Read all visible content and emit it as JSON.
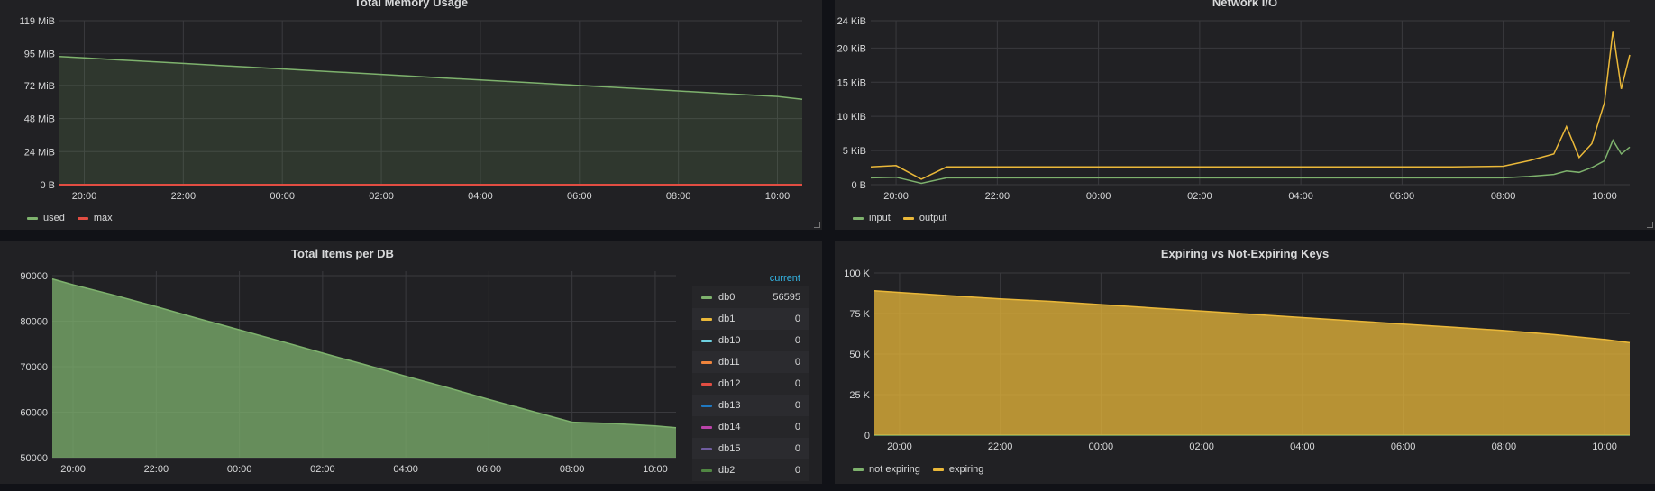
{
  "panels": {
    "memory": {
      "title": "Total Memory Usage",
      "legend": [
        {
          "label": "used",
          "color": "#7eb26d"
        },
        {
          "label": "max",
          "color": "#e24d42"
        }
      ]
    },
    "network": {
      "title": "Network I/O",
      "legend": [
        {
          "label": "input",
          "color": "#7eb26d"
        },
        {
          "label": "output",
          "color": "#eab839"
        }
      ]
    },
    "items": {
      "title": "Total Items per DB",
      "legend_header": "current",
      "legend": [
        {
          "label": "db0",
          "value": "56595",
          "color": "#7eb26d"
        },
        {
          "label": "db1",
          "value": "0",
          "color": "#eab839"
        },
        {
          "label": "db10",
          "value": "0",
          "color": "#6ed0e0"
        },
        {
          "label": "db11",
          "value": "0",
          "color": "#ef843c"
        },
        {
          "label": "db12",
          "value": "0",
          "color": "#e24d42"
        },
        {
          "label": "db13",
          "value": "0",
          "color": "#1f78c1"
        },
        {
          "label": "db14",
          "value": "0",
          "color": "#ba43a9"
        },
        {
          "label": "db15",
          "value": "0",
          "color": "#705da0"
        },
        {
          "label": "db2",
          "value": "0",
          "color": "#508642"
        }
      ]
    },
    "expiring": {
      "title": "Expiring vs Not-Expiring Keys",
      "legend": [
        {
          "label": "not expiring",
          "color": "#7eb26d"
        },
        {
          "label": "expiring",
          "color": "#eab839"
        }
      ]
    }
  },
  "chart_data": [
    {
      "id": "memory",
      "type": "area",
      "title": "Total Memory Usage",
      "x": [
        "19:30",
        "20:00",
        "21:00",
        "22:00",
        "23:00",
        "00:00",
        "01:00",
        "02:00",
        "03:00",
        "04:00",
        "05:00",
        "06:00",
        "07:00",
        "08:00",
        "09:00",
        "10:00",
        "10:30"
      ],
      "x_ticks": [
        "20:00",
        "22:00",
        "00:00",
        "02:00",
        "04:00",
        "06:00",
        "08:00",
        "10:00"
      ],
      "y_ticks": [
        "0 B",
        "24 MiB",
        "48 MiB",
        "72 MiB",
        "95 MiB",
        "119 MiB"
      ],
      "ylim_mib": [
        0,
        119
      ],
      "series": [
        {
          "name": "used",
          "color": "#7eb26d",
          "fill": true,
          "values_mib": [
            93,
            92,
            90,
            88,
            86,
            84,
            82,
            80,
            78,
            76,
            74,
            72,
            70,
            68,
            66,
            64,
            62
          ]
        },
        {
          "name": "max",
          "color": "#e24d42",
          "fill": false,
          "values_mib": [
            0,
            0,
            0,
            0,
            0,
            0,
            0,
            0,
            0,
            0,
            0,
            0,
            0,
            0,
            0,
            0,
            0
          ]
        }
      ],
      "grid": true,
      "legend_position": "bottom-left"
    },
    {
      "id": "network",
      "type": "line",
      "title": "Network I/O",
      "x": [
        "19:30",
        "20:00",
        "20:30",
        "21:00",
        "22:00",
        "23:00",
        "00:00",
        "01:00",
        "02:00",
        "03:00",
        "04:00",
        "05:00",
        "06:00",
        "07:00",
        "08:00",
        "08:30",
        "09:00",
        "09:15",
        "09:30",
        "09:45",
        "10:00",
        "10:10",
        "10:20",
        "10:30"
      ],
      "x_ticks": [
        "20:00",
        "22:00",
        "00:00",
        "02:00",
        "04:00",
        "06:00",
        "08:00",
        "10:00"
      ],
      "y_ticks": [
        "0 B",
        "5 KiB",
        "10 KiB",
        "15 KiB",
        "20 KiB",
        "24 KiB"
      ],
      "ylim_kib": [
        0,
        24
      ],
      "series": [
        {
          "name": "input",
          "color": "#7eb26d",
          "values_kib": [
            1.0,
            1.1,
            0.2,
            1.0,
            1.0,
            1.0,
            1.0,
            1.0,
            1.0,
            1.0,
            1.0,
            1.0,
            1.0,
            1.0,
            1.0,
            1.2,
            1.5,
            2.0,
            1.8,
            2.5,
            3.5,
            6.5,
            4.5,
            5.5
          ]
        },
        {
          "name": "output",
          "color": "#eab839",
          "values_kib": [
            2.6,
            2.8,
            0.8,
            2.6,
            2.6,
            2.6,
            2.6,
            2.6,
            2.6,
            2.6,
            2.6,
            2.6,
            2.6,
            2.6,
            2.7,
            3.5,
            4.5,
            8.5,
            4.0,
            6.0,
            12.0,
            22.5,
            14.0,
            19.0
          ]
        }
      ],
      "grid": true,
      "legend_position": "bottom-left"
    },
    {
      "id": "items",
      "type": "area",
      "title": "Total Items per DB",
      "x": [
        "19:30",
        "20:00",
        "21:00",
        "22:00",
        "23:00",
        "00:00",
        "01:00",
        "02:00",
        "03:00",
        "04:00",
        "05:00",
        "06:00",
        "07:00",
        "08:00",
        "09:00",
        "10:00",
        "10:30"
      ],
      "x_ticks": [
        "20:00",
        "22:00",
        "00:00",
        "02:00",
        "04:00",
        "06:00",
        "08:00",
        "10:00"
      ],
      "y_ticks": [
        "50000",
        "60000",
        "70000",
        "80000",
        "90000"
      ],
      "ylim": [
        50000,
        91000
      ],
      "series": [
        {
          "name": "db0",
          "color": "#7eb26d",
          "fill": true,
          "values": [
            89300,
            88000,
            85700,
            83200,
            80600,
            78100,
            75600,
            73000,
            70500,
            67900,
            65400,
            62800,
            60300,
            57800,
            57500,
            57000,
            56595
          ]
        }
      ],
      "grid": true,
      "legend_position": "right"
    },
    {
      "id": "expiring",
      "type": "area",
      "title": "Expiring vs Not-Expiring Keys",
      "x": [
        "19:30",
        "20:00",
        "21:00",
        "22:00",
        "23:00",
        "00:00",
        "01:00",
        "02:00",
        "03:00",
        "04:00",
        "05:00",
        "06:00",
        "07:00",
        "08:00",
        "09:00",
        "10:00",
        "10:30"
      ],
      "x_ticks": [
        "20:00",
        "22:00",
        "00:00",
        "02:00",
        "04:00",
        "06:00",
        "08:00",
        "10:00"
      ],
      "y_ticks": [
        "0",
        "25 K",
        "50 K",
        "75 K",
        "100 K"
      ],
      "ylim_k": [
        0,
        100
      ],
      "series": [
        {
          "name": "not expiring",
          "color": "#7eb26d",
          "fill": false,
          "values_k": [
            0,
            0,
            0,
            0,
            0,
            0,
            0,
            0,
            0,
            0,
            0,
            0,
            0,
            0,
            0,
            0,
            0
          ]
        },
        {
          "name": "expiring",
          "color": "#eab839",
          "fill": true,
          "values_k": [
            89,
            88,
            86,
            84,
            82.5,
            80.5,
            78.5,
            76.5,
            74.5,
            72.5,
            70.5,
            68.5,
            66.5,
            64.5,
            62,
            59,
            57
          ]
        }
      ],
      "grid": true,
      "legend_position": "bottom-left"
    }
  ]
}
